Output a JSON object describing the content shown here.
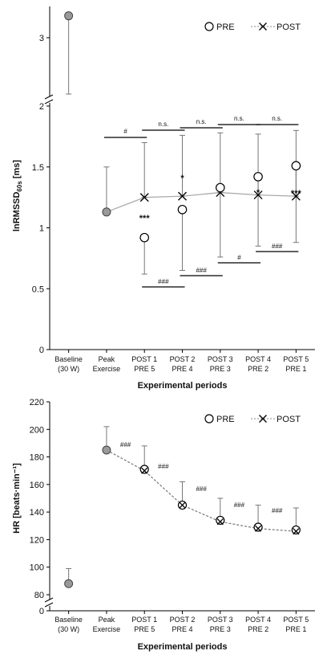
{
  "chart_data": [
    {
      "type": "scatter",
      "title": "",
      "ylabel_main": "lnRMSSD",
      "ylabel_sub": "60s",
      "ylabel_unit": " [ms]",
      "xlabel": "Experimental periods",
      "categories": [
        [
          "Baseline",
          "(30 W)"
        ],
        [
          "Peak",
          "Exercise"
        ],
        [
          "POST 1",
          "PRE 5"
        ],
        [
          "POST 2",
          "PRE 4"
        ],
        [
          "POST 3",
          "PRE 3"
        ],
        [
          "POST 4",
          "PRE 2"
        ],
        [
          "POST 5",
          "PRE 1"
        ]
      ],
      "axis_break": true,
      "yticks_lower": [
        "0",
        "0.5",
        "1",
        "1.5",
        "2"
      ],
      "yticks_lower_values": [
        0,
        0.5,
        1,
        1.5,
        2
      ],
      "ytick_upper": "3",
      "ylim": [
        0,
        2
      ],
      "legend": {
        "position": "top-right",
        "items": [
          "PRE",
          "POST"
        ]
      },
      "baseline_peak": {
        "values": [
          3.35,
          1.13
        ],
        "err_low": [
          2.1,
          1.13
        ],
        "err_high": [
          3.35,
          1.5
        ]
      },
      "series": [
        {
          "name": "PRE",
          "x": [
            2,
            3,
            4,
            5,
            6
          ],
          "values": [
            0.92,
            1.15,
            1.33,
            1.42,
            1.51
          ],
          "err_low": [
            0.62,
            0.65,
            0.76,
            0.85,
            0.88
          ],
          "err_high": [
            0.92,
            1.15,
            1.33,
            1.42,
            1.51
          ]
        },
        {
          "name": "POST",
          "x": [
            2,
            3,
            4,
            5,
            6
          ],
          "values": [
            1.25,
            1.26,
            1.29,
            1.27,
            1.26
          ],
          "err_low": [
            1.25,
            1.26,
            1.29,
            1.27,
            1.26
          ],
          "err_high": [
            1.7,
            1.76,
            1.78,
            1.77,
            1.8
          ]
        }
      ],
      "brackets_top": [
        {
          "from": 1,
          "to": 2,
          "label": "#"
        },
        {
          "from": 2,
          "to": 3,
          "label": "n.s."
        },
        {
          "from": 3,
          "to": 4,
          "label": "n.s."
        },
        {
          "from": 4,
          "to": 5,
          "label": "n.s."
        },
        {
          "from": 5,
          "to": 6,
          "label": "n.s."
        }
      ],
      "brackets_bottom": [
        {
          "from": 2,
          "to": 3,
          "label": "###"
        },
        {
          "from": 3,
          "to": 4,
          "label": "###"
        },
        {
          "from": 4,
          "to": 5,
          "label": "#"
        },
        {
          "from": 5,
          "to": 6,
          "label": "###"
        }
      ],
      "annotations": [
        {
          "x": 2,
          "y": 0.95,
          "label": "***"
        },
        {
          "x": 3,
          "y": 1.18,
          "label": "*"
        },
        {
          "x": 5,
          "y": 1.35,
          "label": "*"
        },
        {
          "x": 6,
          "y": 1.35,
          "label": "***"
        }
      ]
    },
    {
      "type": "line",
      "title": "",
      "ylabel": "HR [beats·min⁻¹]",
      "xlabel": "Experimental periods",
      "categories": [
        [
          "Baseline",
          "(30 W)"
        ],
        [
          "Peak",
          "Exercise"
        ],
        [
          "POST 1",
          "PRE 5"
        ],
        [
          "POST 2",
          "PRE 4"
        ],
        [
          "POST 3",
          "PRE 3"
        ],
        [
          "POST 4",
          "PRE 2"
        ],
        [
          "POST 5",
          "PRE 1"
        ]
      ],
      "axis_break": true,
      "yticks": [
        "0",
        "80",
        "100",
        "120",
        "140",
        "160",
        "180",
        "200",
        "220"
      ],
      "yticks_values": [
        80,
        100,
        120,
        140,
        160,
        180,
        200,
        220
      ],
      "ylim": [
        80,
        220
      ],
      "legend": {
        "position": "top-right",
        "items": [
          "PRE",
          "POST"
        ]
      },
      "baseline_peak": {
        "values": [
          88,
          185
        ],
        "err_high": [
          99,
          202
        ]
      },
      "series": [
        {
          "name": "PRE",
          "x": [
            2,
            3,
            4,
            5,
            6
          ],
          "values": [
            171,
            145,
            134,
            129,
            127
          ],
          "err_high": [
            188,
            162,
            150,
            145,
            143
          ]
        },
        {
          "name": "POST",
          "x": [
            1,
            2,
            3,
            4,
            5,
            6
          ],
          "values": [
            185,
            170,
            145,
            133,
            128,
            126
          ],
          "err_high": [
            202,
            187,
            162,
            150,
            145,
            143
          ]
        }
      ],
      "annotations": [
        {
          "x": 1.5,
          "y": 178,
          "label": "###"
        },
        {
          "x": 2.5,
          "y": 158,
          "label": "###"
        },
        {
          "x": 3.5,
          "y": 140,
          "label": "###"
        },
        {
          "x": 4.5,
          "y": 131,
          "label": "###"
        },
        {
          "x": 5.5,
          "y": 127,
          "label": "###"
        }
      ]
    }
  ]
}
